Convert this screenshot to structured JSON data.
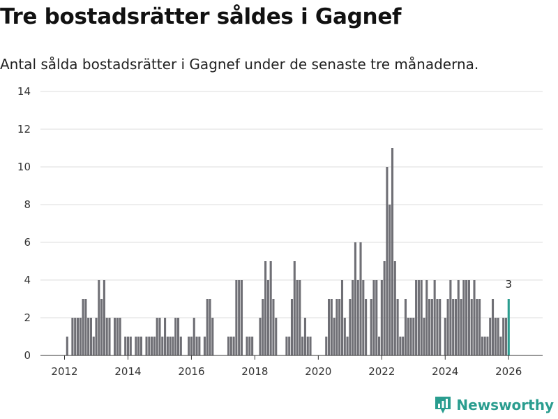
{
  "header": {
    "title": "Tre bostadsrätter såldes i Gagnef",
    "subtitle": "Antal sålda bostadsrätter i Gagnef under de senaste tre månaderna."
  },
  "brand": {
    "name": "Newsworthy",
    "icon": "newsworthy-logo-icon",
    "color": "#2a9d8f"
  },
  "chart_data": {
    "type": "bar",
    "title": "Tre bostadsrätter såldes i Gagnef",
    "subtitle": "Antal sålda bostadsrätter i Gagnef under de senaste tre månaderna.",
    "xlabel": "",
    "ylabel": "",
    "start": "2012-01",
    "interval": "month",
    "ylim": [
      0,
      14
    ],
    "y_ticks": [
      0,
      2,
      4,
      6,
      8,
      10,
      12,
      14
    ],
    "x_ticks": [
      "2012",
      "2014",
      "2016",
      "2018",
      "2020",
      "2022",
      "2024",
      "2026"
    ],
    "grid": true,
    "bar_color": "#6f6f75",
    "highlight_color": "#2a9d8f",
    "highlight_label": "3",
    "values": [
      0,
      1,
      0,
      2,
      2,
      2,
      2,
      3,
      3,
      2,
      2,
      1,
      2,
      4,
      3,
      4,
      2,
      2,
      0,
      2,
      2,
      2,
      0,
      1,
      1,
      1,
      0,
      1,
      1,
      1,
      0,
      1,
      1,
      1,
      1,
      2,
      2,
      1,
      2,
      1,
      1,
      1,
      2,
      2,
      1,
      0,
      0,
      1,
      1,
      2,
      1,
      1,
      0,
      1,
      3,
      3,
      2,
      0,
      0,
      0,
      0,
      0,
      1,
      1,
      1,
      4,
      4,
      4,
      0,
      1,
      1,
      1,
      0,
      0,
      2,
      3,
      5,
      4,
      5,
      3,
      2,
      0,
      0,
      0,
      1,
      1,
      3,
      5,
      4,
      4,
      1,
      2,
      1,
      1,
      0,
      0,
      0,
      0,
      0,
      1,
      3,
      3,
      2,
      3,
      3,
      4,
      2,
      1,
      3,
      4,
      6,
      4,
      6,
      4,
      3,
      0,
      3,
      4,
      4,
      1,
      4,
      5,
      10,
      8,
      11,
      5,
      3,
      1,
      1,
      3,
      2,
      2,
      2,
      4,
      4,
      4,
      2,
      4,
      3,
      3,
      4,
      3,
      3,
      0,
      2,
      3,
      4,
      3,
      3,
      4,
      3,
      4,
      4,
      4,
      3,
      4,
      3,
      3,
      1,
      1,
      1,
      2,
      3,
      2,
      2,
      1,
      2,
      2,
      3
    ]
  }
}
